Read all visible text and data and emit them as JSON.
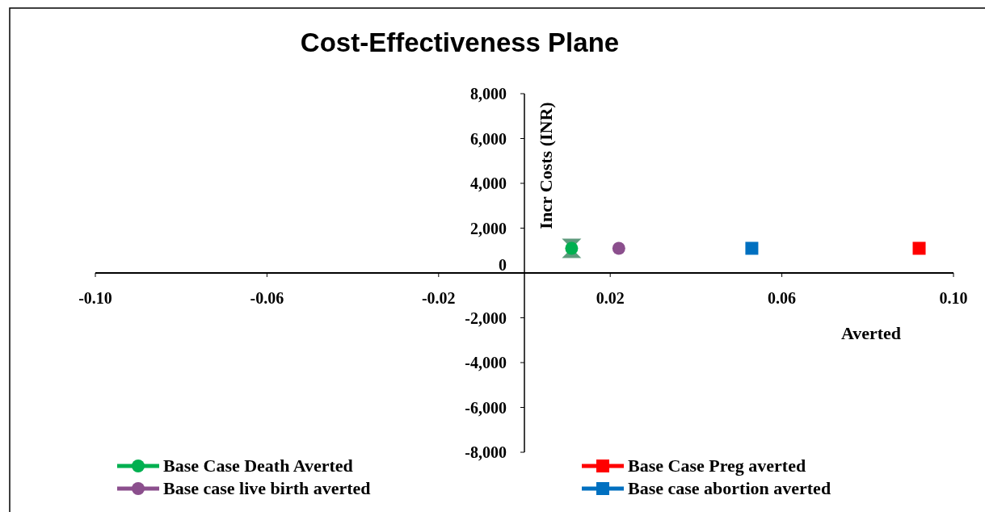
{
  "chart_data": {
    "type": "scatter",
    "title": "Cost-Effectiveness Plane",
    "xlabel": "Averted",
    "ylabel": "Incr Costs (INR)",
    "xlim": [
      -0.1,
      0.1
    ],
    "xticks": [
      {
        "value": -0.1,
        "label": "-0.10"
      },
      {
        "value": -0.06,
        "label": "-0.06"
      },
      {
        "value": -0.02,
        "label": "-0.02"
      },
      {
        "value": 0.02,
        "label": "0.02"
      },
      {
        "value": 0.06,
        "label": "0.06"
      },
      {
        "value": 0.1,
        "label": "0.10"
      }
    ],
    "ylim": [
      -8000,
      8000
    ],
    "yticks": [
      {
        "value": -8000,
        "label": "-8,000"
      },
      {
        "value": -6000,
        "label": "-6,000"
      },
      {
        "value": -4000,
        "label": "-4,000"
      },
      {
        "value": -2000,
        "label": "-2,000"
      },
      {
        "value": 0,
        "label": "0"
      },
      {
        "value": 2000,
        "label": "2,000"
      },
      {
        "value": 4000,
        "label": "4,000"
      },
      {
        "value": 6000,
        "label": "6,000"
      },
      {
        "value": 8000,
        "label": "8,000"
      }
    ],
    "grid": false,
    "legend": "bottom",
    "series": [
      {
        "color": "#5e9a7c",
        "marker": "cross",
        "x": [
          0.011
        ],
        "values": [
          1100
        ]
      },
      {
        "name": "Base Case Death Averted",
        "color": "#00b050",
        "marker": "circle",
        "x": [
          0.011
        ],
        "values": [
          1100
        ]
      },
      {
        "name": "Base Case Preg averted",
        "color": "#ff0000",
        "marker": "square",
        "x": [
          0.092
        ],
        "values": [
          1100
        ]
      },
      {
        "name": "Base case live birth averted",
        "color": "#8b4f8d",
        "marker": "circle",
        "x": [
          0.022
        ],
        "values": [
          1100
        ]
      },
      {
        "name": "Base case abortion averted",
        "color": "#0070c0",
        "marker": "square",
        "x": [
          0.053
        ],
        "values": [
          1100
        ]
      }
    ]
  }
}
